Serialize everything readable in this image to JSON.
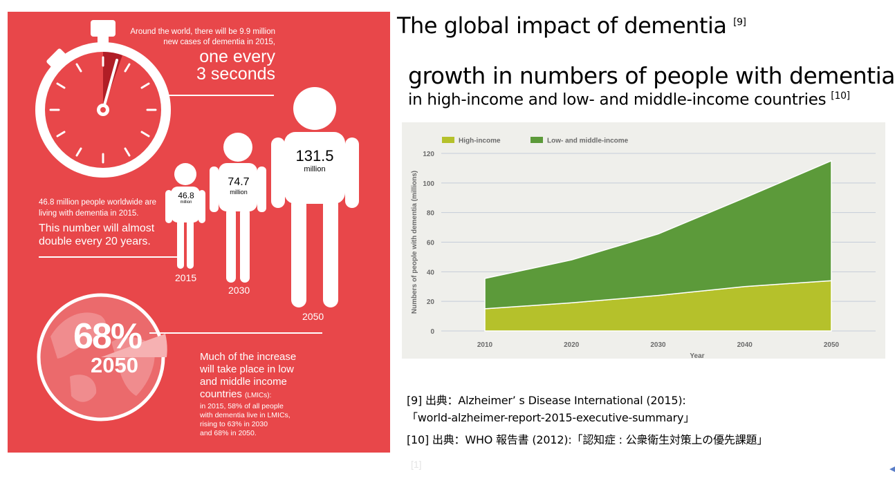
{
  "slide_title": {
    "text": "The global impact of dementia",
    "ref": "[9]"
  },
  "chart_heading": {
    "title": "growth in numbers of people with dementia",
    "subtitle": "in high-income and low- and middle-income countries",
    "ref": "[10]"
  },
  "infographic": {
    "clock_intro": [
      "Around the world, there will be 9.9 million",
      "new cases of dementia in 2015,"
    ],
    "clock_big": [
      "one every",
      "3 seconds"
    ],
    "people_intro": [
      "46.8 million people worldwide are",
      "living with dementia in 2015."
    ],
    "people_big": [
      "This number will almost",
      "double every 20 years."
    ],
    "figures": [
      {
        "value": "46.8",
        "unit": "million",
        "year": "2015"
      },
      {
        "value": "74.7",
        "unit": "million",
        "year": "2030"
      },
      {
        "value": "131.5",
        "unit": "million",
        "year": "2050"
      }
    ],
    "globe_percent": "68%",
    "globe_year": "2050",
    "lmic_big": [
      "Much of the increase",
      "will take place in low",
      "and middle income"
    ],
    "lmic_countries": "countries",
    "lmic_abbr": "(LMICs):",
    "lmic_small": [
      "in 2015, 58% of all people",
      "with dementia live in LMICs,",
      "rising to 63% in 2030",
      "and 68% in 2050."
    ]
  },
  "chart_data": {
    "type": "area",
    "stacked": true,
    "x": [
      2010,
      2020,
      2030,
      2040,
      2050
    ],
    "series": [
      {
        "name": "High-income",
        "color": "#b5c12b",
        "values": [
          15,
          19,
          24,
          30,
          34
        ]
      },
      {
        "name": "Low- and middle-income",
        "color": "#5c9a3a",
        "values": [
          20.5,
          29,
          41.5,
          60,
          81
        ]
      }
    ],
    "xlabel": "Year",
    "ylabel": "Numbers of people with dementia (millions)",
    "ylim": [
      0,
      120
    ],
    "yticks": [
      0,
      20,
      40,
      60,
      80,
      100,
      120
    ],
    "grid": true,
    "legend": "top-left"
  },
  "references": [
    "[9] 出典：Alzheimer’ s Disease International (2015):",
    "「world-alzheimer-report-2015-executive-summary」",
    "[10] 出典：WHO 報告書 (2012):「認知症 : 公衆衛生対策上の優先課題」"
  ],
  "faint_mark": "[1]",
  "colors": {
    "infographic_bg": "#e8474a",
    "high_income": "#b5c12b",
    "lmic": "#5c9a3a",
    "chart_bg": "#efefeb"
  }
}
